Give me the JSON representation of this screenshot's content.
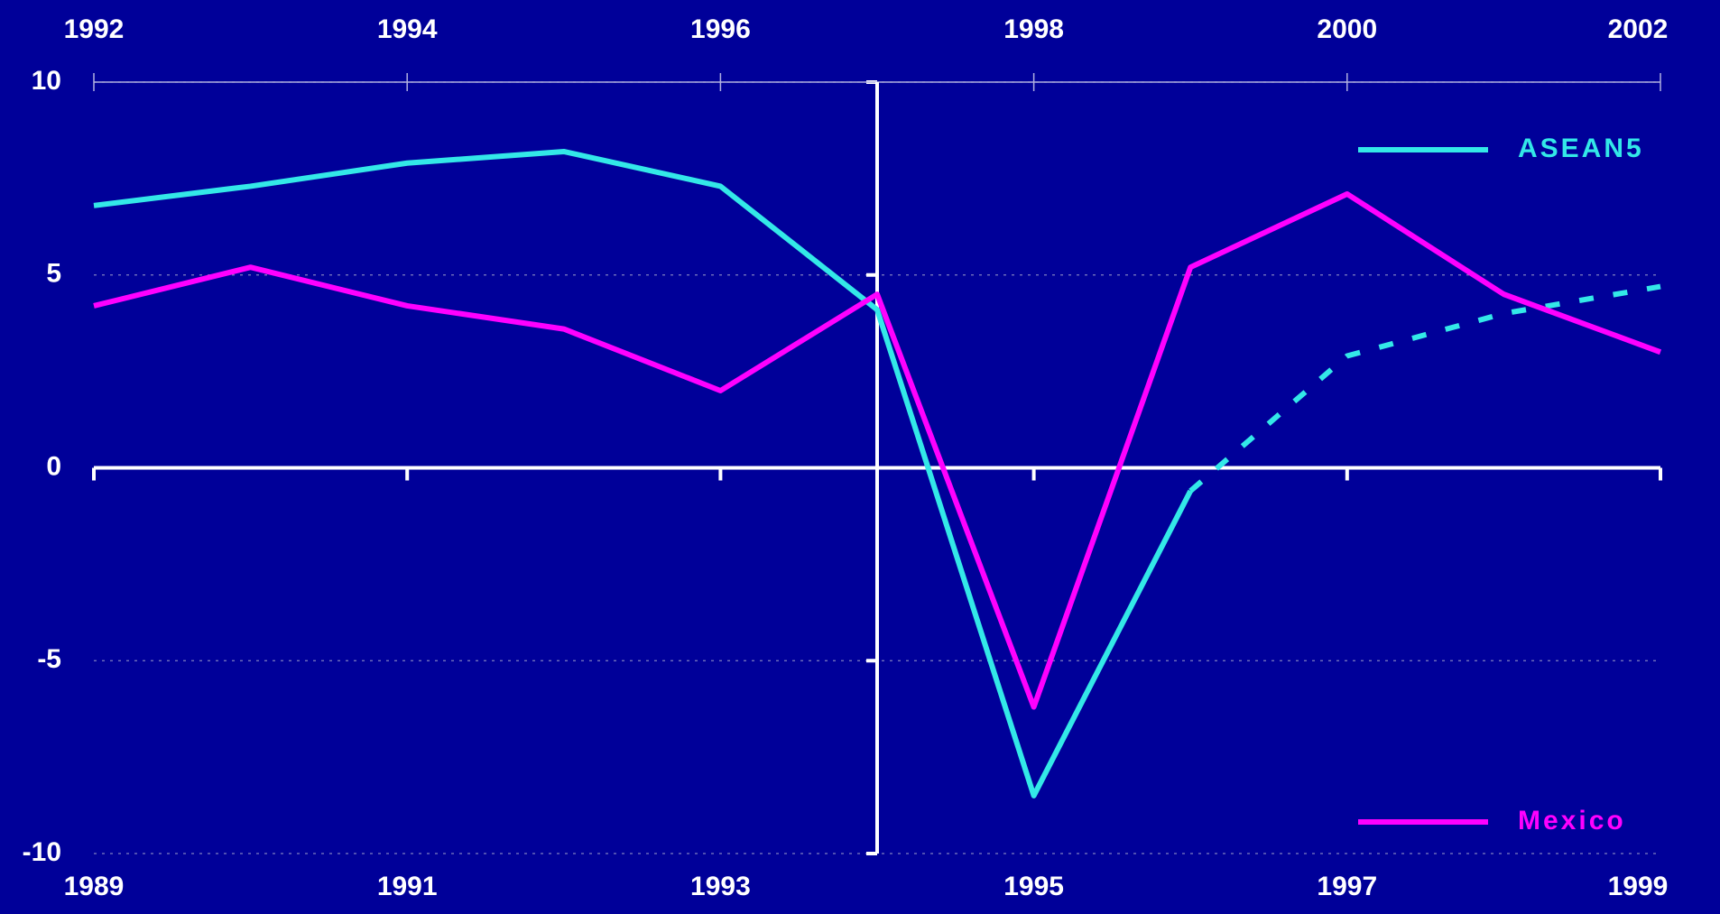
{
  "chart_data": {
    "type": "line",
    "x": [
      1989,
      1990,
      1991,
      1992,
      1993,
      1994,
      1995,
      1996,
      1997,
      1998,
      1999
    ],
    "xlim": [
      1989,
      1999
    ],
    "xticks": [
      1989,
      1991,
      1993,
      1995,
      1997,
      1999
    ],
    "x2": [
      1992,
      1993,
      1994,
      1995,
      1996,
      1997,
      1998,
      1999,
      2000,
      2001,
      2002
    ],
    "x2lim": [
      1992,
      2002
    ],
    "x2ticks": [
      1992,
      1994,
      1996,
      1998,
      2000,
      2002
    ],
    "ylim": [
      -10,
      10
    ],
    "yticks": [
      -10,
      -5,
      0,
      5,
      10
    ],
    "grid": true,
    "vertical_axis_at": 1994,
    "legend": "right",
    "series": [
      {
        "name": "ASEAN5",
        "color": "#33e8e8",
        "xaxis": "x2",
        "dashed_from_index": 7,
        "values": [
          6.8,
          7.3,
          7.9,
          8.2,
          7.3,
          4.1,
          -8.5,
          -0.6,
          2.9,
          4.0,
          4.7
        ]
      },
      {
        "name": "Mexico",
        "color": "#ff00ff",
        "xaxis": "x",
        "values": [
          4.2,
          5.2,
          4.2,
          3.6,
          2.0,
          4.5,
          -6.2,
          5.2,
          7.1,
          4.5,
          3.0
        ]
      }
    ]
  }
}
